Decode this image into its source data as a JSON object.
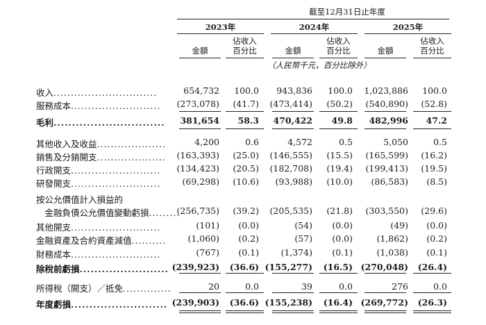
{
  "header": {
    "period_title": "截至12月31日止年度",
    "years": [
      "2023年",
      "2024年",
      "2025年"
    ],
    "amount_label": "金額",
    "pct_label_line1": "佔收入",
    "pct_label_line2": "百分比",
    "unit_note": "（人民幣千元，百分比除外）"
  },
  "rows": [
    {
      "label": "收入",
      "dots": "..............................",
      "v": [
        "654,732",
        "100.0",
        "943,836",
        "100.0",
        "1,023,886",
        "100.0"
      ]
    },
    {
      "label": "服務成本",
      "dots": "..........................",
      "v": [
        "(273,078)",
        "(41.7)",
        "(473,414)",
        "(50.2)",
        "(540,890)",
        "(52.8)"
      ]
    },
    {
      "label": "毛利",
      "dots": "..............................",
      "v": [
        "381,654",
        "58.3",
        "470,422",
        "49.8",
        "482,996",
        "47.2"
      ]
    },
    {
      "label": "其他收入及收益",
      "dots": "....................",
      "v": [
        "4,200",
        "0.6",
        "4,572",
        "0.5",
        "5,050",
        "0.5"
      ]
    },
    {
      "label": "銷售及分銷開支",
      "dots": "....................",
      "v": [
        "(163,393)",
        "(25.0)",
        "(146,555)",
        "(15.5)",
        "(165,599)",
        "(16.2)"
      ]
    },
    {
      "label": "行政開支",
      "dots": "..........................",
      "v": [
        "(134,423)",
        "(20.5)",
        "(182,708)",
        "(19.4)",
        "(199,413)",
        "(19.5)"
      ]
    },
    {
      "label": "研發開支",
      "dots": "..........................",
      "v": [
        "(69,298)",
        "(10.6)",
        "(93,988)",
        "(10.0)",
        "(86,583)",
        "(8.5)"
      ]
    },
    {
      "label": "按公允價值計入損益的",
      "dots": "",
      "v": [
        "",
        "",
        "",
        "",
        "",
        ""
      ]
    },
    {
      "label": "　金融負債公允價值變動虧損",
      "dots": ".........",
      "v": [
        "(256,735)",
        "(39.2)",
        "(205,535)",
        "(21.8)",
        "(303,550)",
        "(29.6)"
      ]
    },
    {
      "label": "其他開支",
      "dots": "..........................",
      "v": [
        "(101)",
        "(0.0)",
        "(54)",
        "(0.0)",
        "(49)",
        "(0.0)"
      ]
    },
    {
      "label": "金融資產及合約資產減值",
      "dots": "..........",
      "v": [
        "(1,060)",
        "(0.2)",
        "(57)",
        "(0.0)",
        "(1,862)",
        "(0.2)"
      ]
    },
    {
      "label": "財務成本",
      "dots": "..........................",
      "v": [
        "(767)",
        "(0.1)",
        "(1,374)",
        "(0.1)",
        "(1,038)",
        "(0.1)"
      ]
    },
    {
      "label": "除稅前虧損",
      "dots": "........................",
      "v": [
        "(239,923)",
        "(36.6)",
        "(155,277)",
        "(16.5)",
        "(270,048)",
        "(26.4)"
      ]
    },
    {
      "label": "所得稅（開支）／抵免",
      "dots": "..............",
      "v": [
        "20",
        "0.0",
        "39",
        "0.0",
        "276",
        "0.0"
      ]
    },
    {
      "label": "年度虧損",
      "dots": "..........................",
      "v": [
        "(239,903)",
        "(36.6)",
        "(155,238)",
        "(16.4)",
        "(269,772)",
        "(26.3)"
      ]
    }
  ]
}
